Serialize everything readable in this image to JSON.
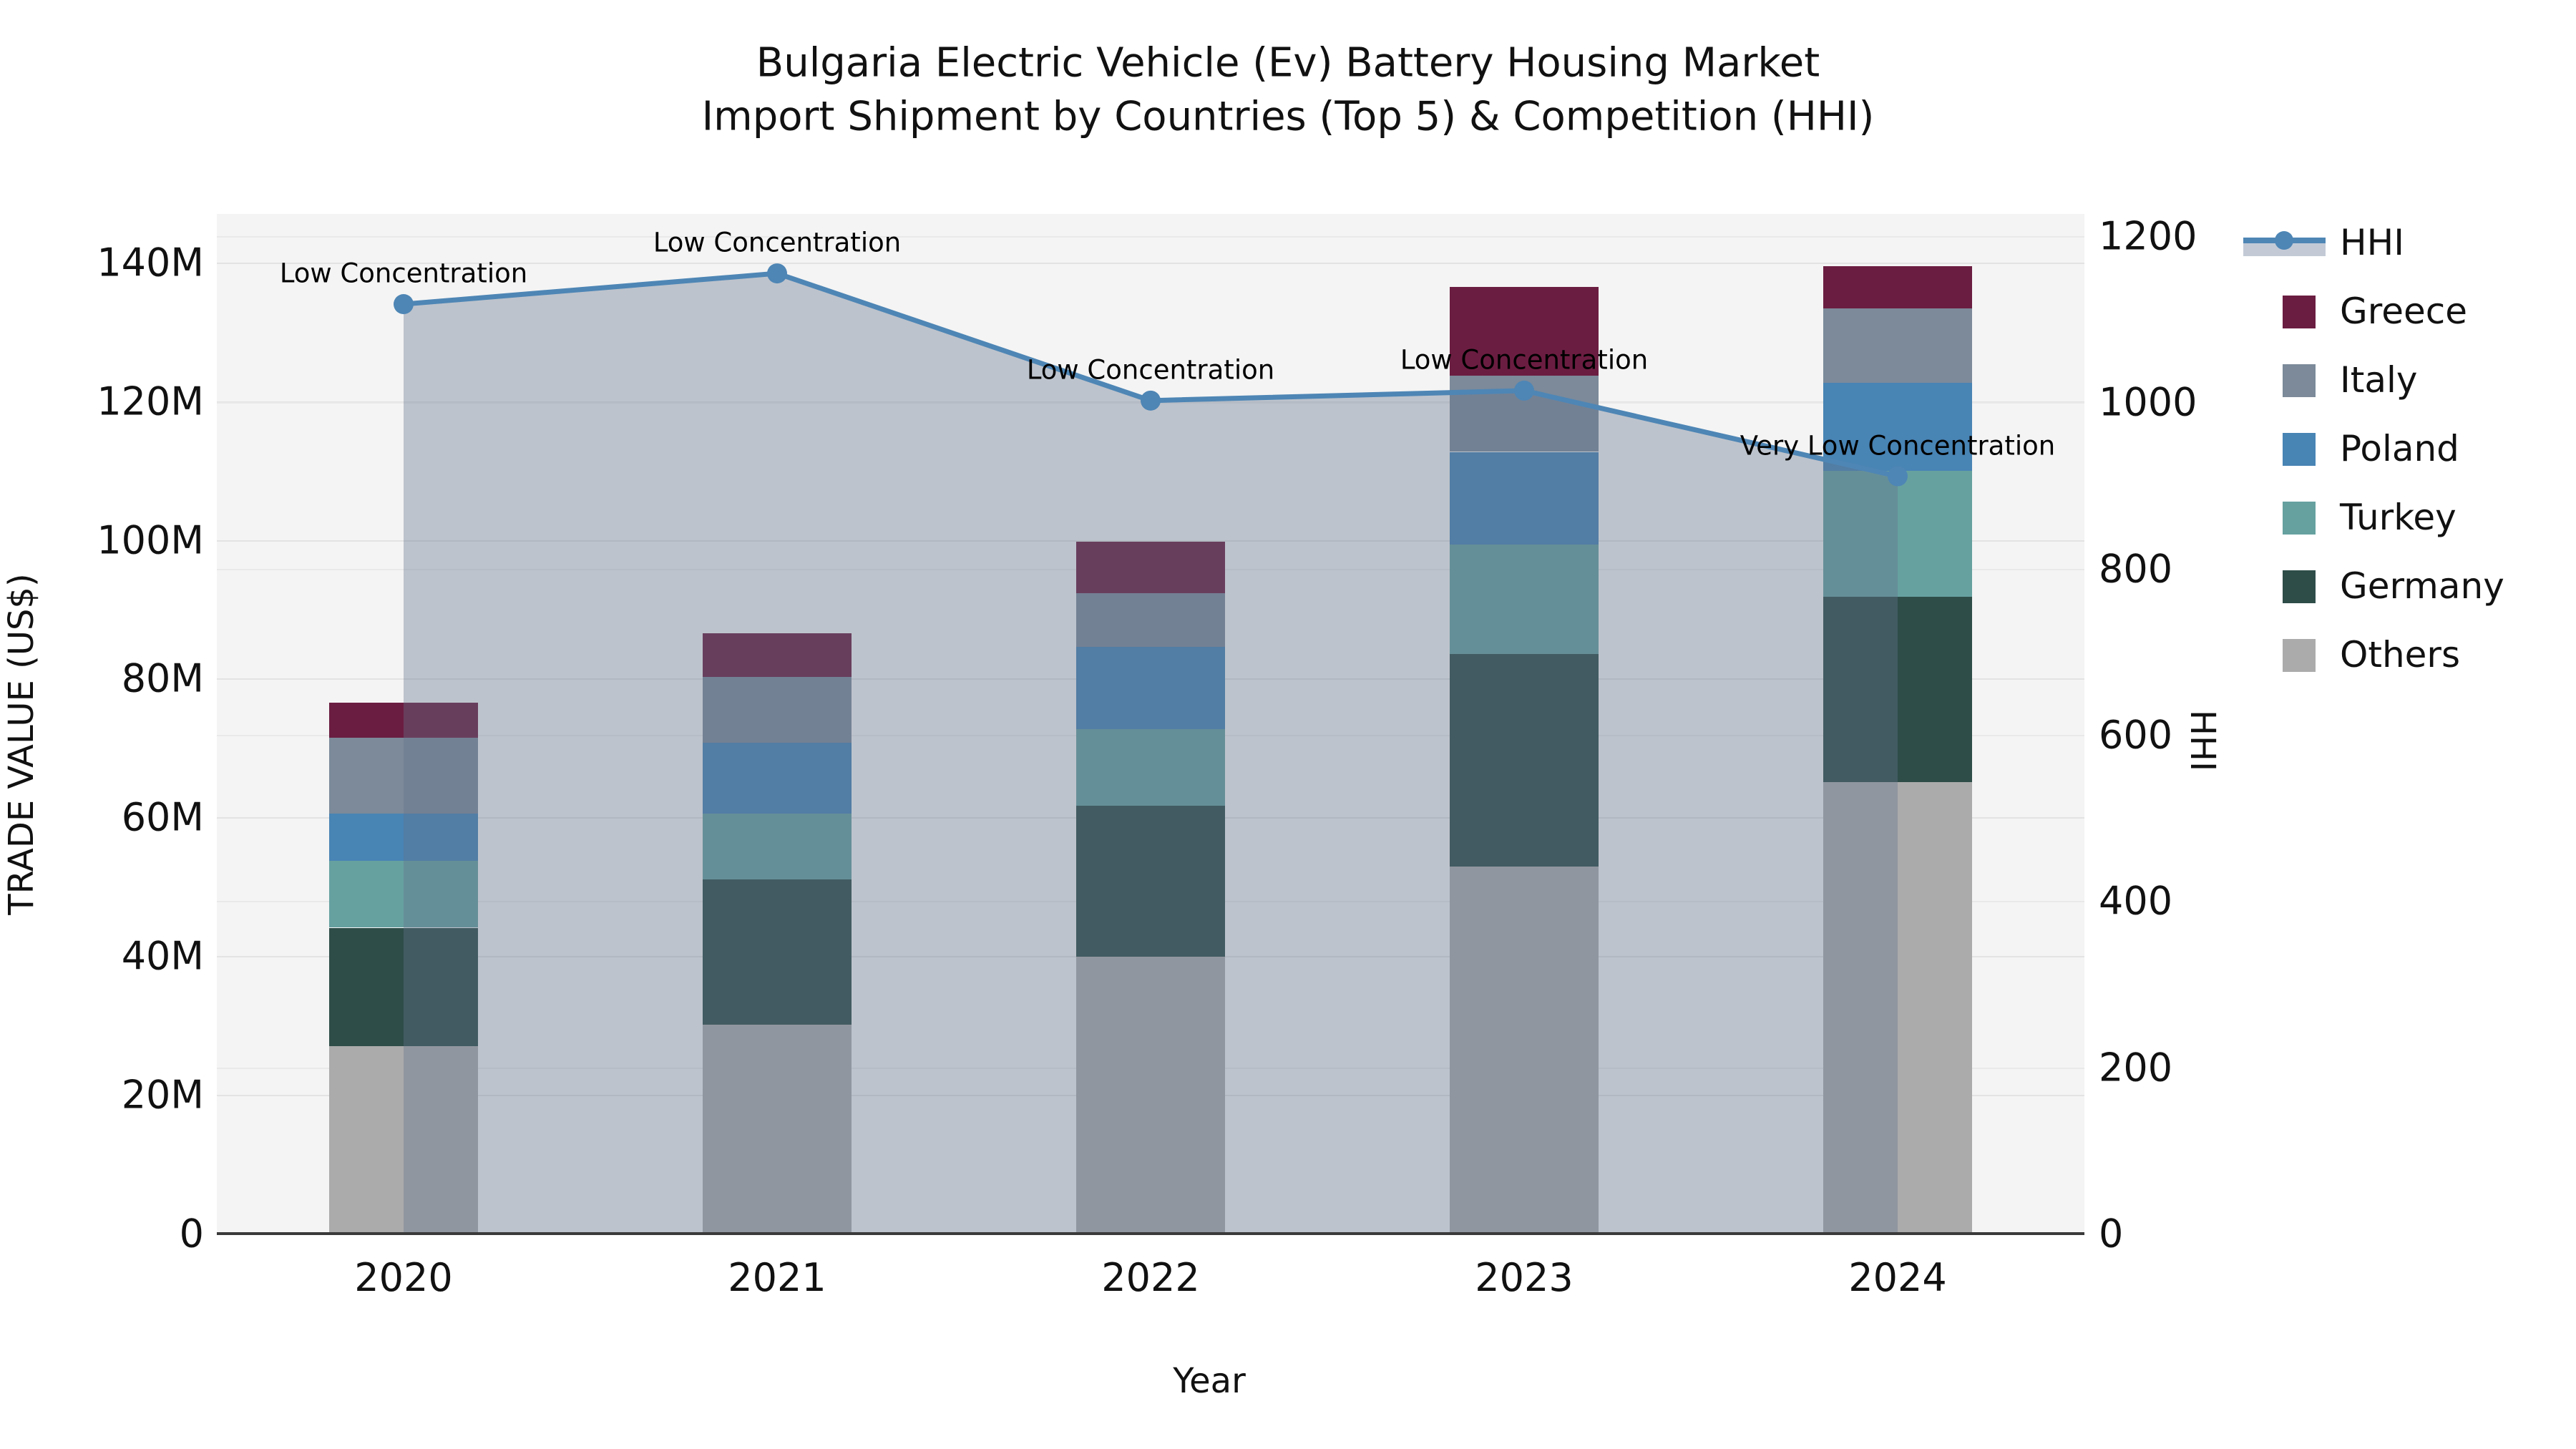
{
  "title": {
    "line1": "Bulgaria Electric Vehicle (Ev) Battery Housing Market",
    "line2": "Import Shipment by Countries (Top 5) & Competition (HHI)"
  },
  "axes": {
    "y_left": {
      "label": "TRADE VALUE (US$)",
      "tick_labels": [
        "0",
        "20M",
        "40M",
        "60M",
        "80M",
        "100M",
        "120M",
        "140M"
      ],
      "tick_values": [
        0,
        20,
        40,
        60,
        80,
        100,
        120,
        140
      ],
      "max_value": 147
    },
    "y_right": {
      "label": "HHI",
      "tick_labels": [
        "0",
        "200",
        "400",
        "600",
        "800",
        "1000",
        "1200"
      ],
      "tick_values": [
        0,
        200,
        400,
        600,
        800,
        1000,
        1200
      ],
      "max_value": 1226.5
    },
    "x": {
      "label": "Year",
      "categories": [
        "2020",
        "2021",
        "2022",
        "2023",
        "2024"
      ]
    }
  },
  "chart_data": {
    "type": "bar",
    "subtype": "stacked-bars-with-line-overlay",
    "categories": [
      "2020",
      "2021",
      "2022",
      "2023",
      "2024"
    ],
    "unit": "M US$",
    "series": [
      {
        "name": "Others",
        "color": "#ababab",
        "values": [
          27.0,
          30.1,
          39.9,
          52.9,
          65.1
        ]
      },
      {
        "name": "Germany",
        "color": "#2e4d49",
        "values": [
          17.1,
          21.0,
          21.8,
          30.7,
          26.7
        ]
      },
      {
        "name": "Turkey",
        "color": "#66a1a0",
        "values": [
          9.6,
          9.5,
          11.0,
          15.7,
          18.2
        ]
      },
      {
        "name": "Poland",
        "color": "#4884b4",
        "values": [
          6.9,
          10.2,
          11.9,
          13.4,
          12.7
        ]
      },
      {
        "name": "Italy",
        "color": "#7c8a9a",
        "values": [
          10.9,
          9.5,
          7.7,
          11.0,
          10.7
        ]
      },
      {
        "name": "Greece",
        "color": "#6b1d41",
        "values": [
          5.0,
          6.2,
          7.5,
          12.8,
          6.1
        ]
      }
    ],
    "bar_totals": [
      76.5,
      86.5,
      99.8,
      136.5,
      139.5
    ],
    "hhi_line": {
      "name": "HHI",
      "values": [
        1118,
        1155,
        1002,
        1014,
        911
      ],
      "line_color": "#4e86b5",
      "marker": "circle",
      "area_fill_color": "rgba(100,115,140,0.38)"
    },
    "annotations": [
      {
        "category": "2020",
        "text": "Low Concentration"
      },
      {
        "category": "2021",
        "text": "Low Concentration"
      },
      {
        "category": "2022",
        "text": "Low Concentration"
      },
      {
        "category": "2023",
        "text": "Low Concentration"
      },
      {
        "category": "2024",
        "text": "Very Low Concentration"
      }
    ],
    "legend_order": [
      "HHI",
      "Greece",
      "Italy",
      "Poland",
      "Turkey",
      "Germany",
      "Others"
    ],
    "grid": true,
    "plot_background": "#f4f4f4",
    "gridline_color": "#e3e3e3",
    "axis_line_color": "#3a3a3a"
  },
  "legend": {
    "hhi_label": "HHI",
    "hhi_band_color": "#c3cad6"
  }
}
